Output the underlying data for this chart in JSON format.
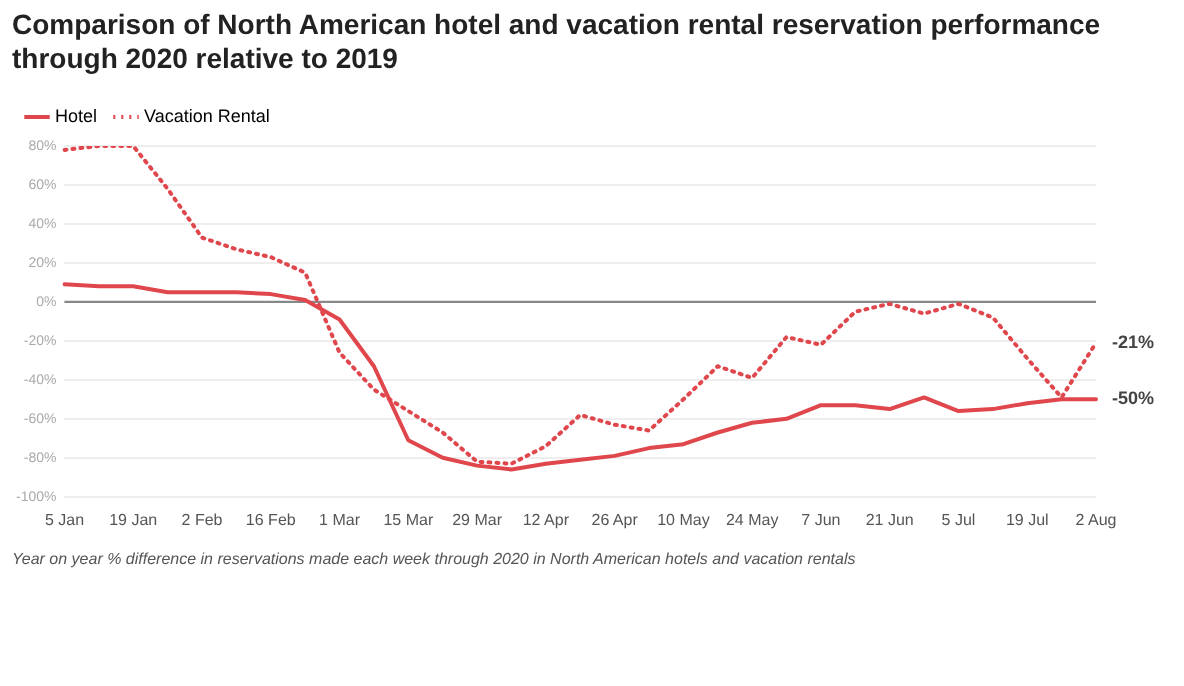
{
  "chart_data": {
    "type": "line",
    "title": "Comparison of North American hotel and vacation rental reservation performance through 2020 relative to 2019",
    "categories": [
      "5 Jan",
      null,
      "19 Jan",
      null,
      "2 Feb",
      null,
      "16 Feb",
      null,
      "1 Mar",
      null,
      "15 Mar",
      null,
      "29 Mar",
      null,
      "12 Apr",
      null,
      "26 Apr",
      null,
      "10 May",
      null,
      "24 May",
      null,
      "7 Jun",
      null,
      "21 Jun",
      null,
      "5 Jul",
      null,
      "19 Jul",
      null,
      "2 Aug"
    ],
    "series": [
      {
        "name": "Hotel",
        "color": "#e0474c",
        "line_style": "solid",
        "values": [
          9,
          8,
          8,
          5,
          5,
          5,
          4,
          1,
          -9,
          -33,
          -71,
          -80,
          -84,
          -86,
          -83,
          -81,
          -79,
          -75,
          -73,
          -67,
          -62,
          -60,
          -53,
          -53,
          -55,
          -49,
          -56,
          -55,
          -52,
          -50,
          -50
        ]
      },
      {
        "name": "Vacation Rental",
        "color": "#e0474c",
        "line_style": "dotted",
        "values": [
          78,
          80,
          80,
          58,
          33,
          27,
          23,
          15,
          -26,
          -45,
          -56,
          -67,
          -82,
          -83,
          -74,
          -58,
          -63,
          -66,
          -50,
          -33,
          -39,
          -18,
          -22,
          -5,
          -1,
          -6,
          -1,
          -8,
          -29,
          -49,
          -21
        ]
      }
    ],
    "ylim": [
      -100,
      80
    ],
    "yticks": [
      {
        "value": -100,
        "label": "-100%"
      },
      {
        "value": -80,
        "label": "-80%"
      },
      {
        "value": -60,
        "label": "-60%"
      },
      {
        "value": -40,
        "label": "-40%"
      },
      {
        "value": -20,
        "label": "-20%"
      },
      {
        "value": 0,
        "label": "0%"
      },
      {
        "value": 20,
        "label": "20%"
      },
      {
        "value": 40,
        "label": "40%"
      },
      {
        "value": 60,
        "label": "60%"
      },
      {
        "value": 80,
        "label": "80%"
      }
    ],
    "grid": "y",
    "legend": "top left",
    "marker": "none",
    "ref_lines": [
      {
        "axis": "y",
        "value": 0,
        "color": "#888888"
      }
    ],
    "annotations": [
      {
        "text": "-21%",
        "x": "2 Aug",
        "y": -21
      },
      {
        "text": "-50%",
        "x": "2 Aug",
        "y": -50
      },
      "Year on year % difference in reservations made each week through 2020 in North American hotels and vacation rentals"
    ]
  }
}
